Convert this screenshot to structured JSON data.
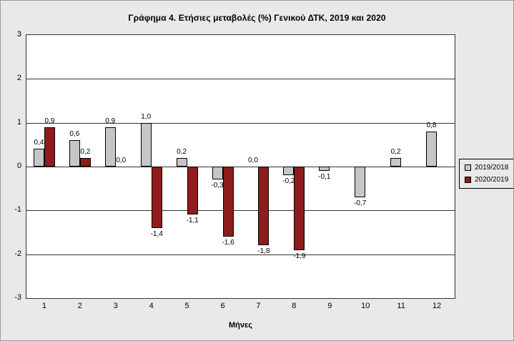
{
  "chart_data": {
    "type": "bar",
    "title": "Γράφημα 4. Ετήσιες μεταβολές (%) Γενικού ΔΤΚ, 2019 και 2020",
    "xlabel": "Μήνες",
    "ylabel": "",
    "ylim": [
      -3,
      3
    ],
    "yticks": [
      3,
      2,
      1,
      0,
      -1,
      -2,
      -3
    ],
    "grid": "horizontal",
    "legend_position": "right",
    "value_labels": true,
    "decimal_separator": ",",
    "categories": [
      "1",
      "2",
      "3",
      "4",
      "5",
      "6",
      "7",
      "8",
      "9",
      "10",
      "11",
      "12"
    ],
    "series": [
      {
        "name": "2019/2018",
        "color": "#c6c6c6",
        "values": [
          0.4,
          0.6,
          0.9,
          1.0,
          0.2,
          -0.3,
          0.0,
          -0.2,
          -0.1,
          -0.7,
          0.2,
          0.8
        ]
      },
      {
        "name": "2020/2019",
        "color": "#8e1c1c",
        "values": [
          0.9,
          0.2,
          0.0,
          -1.4,
          -1.1,
          -1.6,
          -1.8,
          -1.9,
          null,
          null,
          null,
          null
        ]
      }
    ]
  },
  "colors": {
    "figure_background": "#e9e9e9",
    "plot_background": "#ffffff",
    "series_2019_2018": "#c6c6c6",
    "series_2020_2019": "#8e1c1c"
  }
}
